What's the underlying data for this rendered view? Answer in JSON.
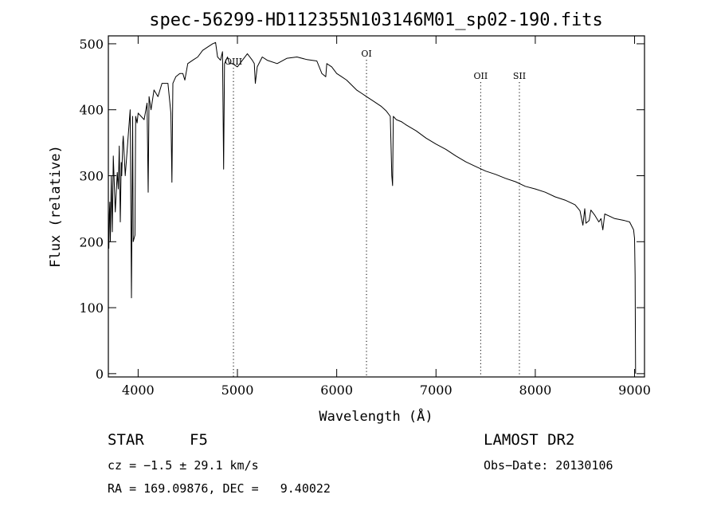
{
  "chart_data": {
    "type": "line",
    "title": "spec-56299-HD112355N103146M01_sp02-190.fits",
    "xlabel": "Wavelength (Å)",
    "ylabel": "Flux (relative)",
    "xlim": [
      3700,
      9100
    ],
    "ylim": [
      -5,
      512
    ],
    "xticks": [
      4000,
      5000,
      6000,
      7000,
      8000,
      9000
    ],
    "yticks": [
      0,
      100,
      200,
      300,
      400,
      500
    ],
    "series": [
      {
        "x": [
          3700,
          3705,
          3710,
          3715,
          3720,
          3730,
          3740,
          3750,
          3770,
          3790,
          3800,
          3810,
          3820,
          3830,
          3835,
          3845,
          3850,
          3870,
          3890,
          3900,
          3920,
          3933,
          3945,
          3950,
          3968,
          3975,
          3990,
          4000,
          4030,
          4060,
          4090,
          4101,
          4110,
          4130,
          4160,
          4200,
          4240,
          4300,
          4330,
          4340,
          4350,
          4380,
          4420,
          4450,
          4470,
          4500,
          4550,
          4600,
          4650,
          4700,
          4750,
          4780,
          4800,
          4830,
          4850,
          4861,
          4870,
          4900,
          4920,
          4950,
          5000,
          5050,
          5100,
          5150,
          5170,
          5180,
          5200,
          5250,
          5300,
          5400,
          5500,
          5600,
          5700,
          5800,
          5850,
          5890,
          5900,
          5950,
          6000,
          6050,
          6100,
          6200,
          6250,
          6300,
          6350,
          6400,
          6450,
          6500,
          6540,
          6555,
          6563,
          6570,
          6600,
          6650,
          6700,
          6800,
          6900,
          7000,
          7100,
          7200,
          7300,
          7400,
          7500,
          7600,
          7700,
          7800,
          7900,
          8000,
          8100,
          8200,
          8300,
          8400,
          8450,
          8480,
          8498,
          8510,
          8542,
          8560,
          8600,
          8640,
          8662,
          8680,
          8700,
          8800,
          8900,
          8950,
          8990,
          9000,
          9005,
          9010
        ],
        "y": [
          225,
          190,
          240,
          260,
          200,
          300,
          215,
          330,
          245,
          305,
          280,
          345,
          230,
          320,
          300,
          350,
          360,
          300,
          340,
          360,
          400,
          115,
          390,
          200,
          210,
          390,
          380,
          395,
          390,
          385,
          410,
          275,
          420,
          400,
          430,
          420,
          440,
          440,
          395,
          290,
          440,
          450,
          455,
          455,
          445,
          470,
          475,
          480,
          490,
          495,
          500,
          502,
          480,
          475,
          488,
          310,
          470,
          480,
          470,
          470,
          465,
          475,
          485,
          475,
          470,
          440,
          465,
          480,
          475,
          470,
          478,
          480,
          476,
          474,
          455,
          450,
          470,
          465,
          455,
          450,
          445,
          430,
          425,
          420,
          415,
          410,
          405,
          398,
          390,
          300,
          285,
          390,
          385,
          382,
          377,
          368,
          357,
          348,
          340,
          330,
          321,
          314,
          307,
          302,
          296,
          291,
          284,
          280,
          275,
          268,
          263,
          256,
          247,
          225,
          250,
          228,
          232,
          248,
          240,
          230,
          235,
          218,
          242,
          235,
          232,
          230,
          218,
          205,
          150,
          0
        ],
        "color": "#000000"
      }
    ],
    "line_markers": [
      {
        "label": "OIII",
        "x": 4960
      },
      {
        "label": "OI",
        "x": 6300
      },
      {
        "label": "OII",
        "x": 7450
      },
      {
        "label": "SII",
        "x": 7840
      }
    ]
  },
  "info": {
    "object_type": "STAR",
    "subclass": "F5",
    "redshift": "cz = −1.5 ± 29.1 km/s",
    "coords": "RA = 169.09876, DEC =   9.40022",
    "survey": "LAMOST DR2",
    "obs_date": "Obs−Date: 20130106"
  }
}
